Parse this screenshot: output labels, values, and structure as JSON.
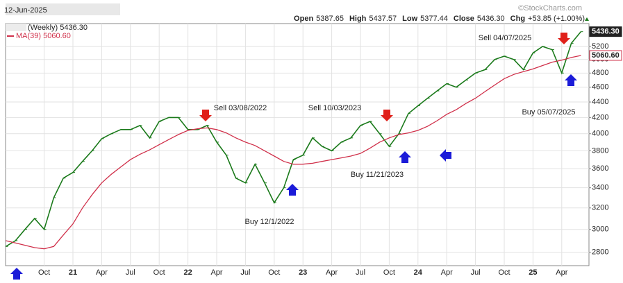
{
  "chart_data": {
    "type": "line",
    "date": "12-Jun-2025",
    "header": [
      {
        "label": "Open",
        "value": "5387.65"
      },
      {
        "label": "High",
        "value": "5437.57"
      },
      {
        "label": "Low",
        "value": "5377.44"
      },
      {
        "label": "Close",
        "value": "5436.30"
      },
      {
        "label": "Chg",
        "value": "+53.85 (+1.00%)"
      }
    ],
    "watermark": "©StockCharts.com",
    "categories": [
      null,
      null,
      null,
      null,
      "Oct",
      null,
      null,
      "21",
      null,
      null,
      "Apr",
      null,
      null,
      "Jul",
      null,
      null,
      "Oct",
      null,
      null,
      "22",
      null,
      null,
      "Apr",
      null,
      null,
      "Jul",
      null,
      null,
      "Oct",
      null,
      null,
      "23",
      null,
      null,
      "Apr",
      null,
      null,
      "Jul",
      null,
      null,
      "Oct",
      null,
      null,
      "24",
      null,
      null,
      "Apr",
      null,
      null,
      "Jul",
      null,
      null,
      "Oct",
      null,
      null,
      "25",
      null,
      null,
      "Apr",
      null,
      null
    ],
    "series": [
      {
        "name": "(Weekly) 5436.30",
        "color": "#1b7a1b",
        "price_tag": "5436.30",
        "values": [
          2850,
          2900,
          3000,
          3100,
          3000,
          3300,
          3500,
          3560,
          3680,
          3800,
          3940,
          4000,
          4050,
          4050,
          4100,
          3950,
          4150,
          4200,
          4200,
          4050,
          4050,
          4100,
          3900,
          3750,
          3500,
          3450,
          3650,
          3450,
          3250,
          3400,
          3700,
          3750,
          3950,
          3850,
          3800,
          3900,
          3950,
          4100,
          4150,
          4000,
          3850,
          4000,
          4250,
          4350,
          4450,
          4550,
          4650,
          4600,
          4700,
          4800,
          4850,
          5000,
          5050,
          5000,
          4850,
          5100,
          5200,
          5150,
          4800,
          5250,
          5436.3
        ]
      },
      {
        "name": "MA(39) 5060.60",
        "color": "#d0304a",
        "price_tag": "5060.60",
        "values": [
          2900,
          2880,
          2860,
          2840,
          2830,
          2850,
          2950,
          3050,
          3200,
          3330,
          3450,
          3540,
          3620,
          3700,
          3760,
          3810,
          3870,
          3930,
          3990,
          4040,
          4060,
          4070,
          4050,
          4010,
          3950,
          3900,
          3860,
          3800,
          3740,
          3680,
          3650,
          3650,
          3660,
          3680,
          3700,
          3720,
          3740,
          3770,
          3830,
          3900,
          3950,
          3990,
          4010,
          4040,
          4090,
          4160,
          4240,
          4300,
          4380,
          4450,
          4540,
          4630,
          4720,
          4780,
          4820,
          4860,
          4910,
          4960,
          4990,
          5030,
          5060.6
        ]
      }
    ],
    "annotations": [
      "Sell 03/08/2022",
      "Sell 10/03/2023",
      "Sell 04/07/2025",
      "Buy 12/1/2022",
      "Buy 11/21/2023",
      "Buy 05/07/2025"
    ],
    "ylim": [
      2690,
      5570
    ],
    "yticks": [
      2800,
      3000,
      3200,
      3400,
      3600,
      3800,
      4000,
      4200,
      4400,
      4600,
      4800,
      5000,
      5200
    ],
    "log_scale": true,
    "grid": true
  }
}
